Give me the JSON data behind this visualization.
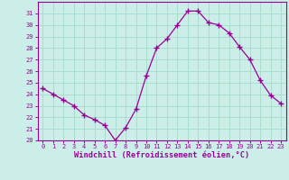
{
  "x": [
    0,
    1,
    2,
    3,
    4,
    5,
    6,
    7,
    8,
    9,
    10,
    11,
    12,
    13,
    14,
    15,
    16,
    17,
    18,
    19,
    20,
    21,
    22,
    23
  ],
  "y": [
    24.5,
    24.0,
    23.5,
    23.0,
    22.2,
    21.8,
    21.3,
    20.0,
    21.1,
    22.7,
    25.6,
    28.0,
    28.8,
    30.0,
    31.2,
    31.2,
    30.2,
    30.0,
    29.3,
    28.1,
    27.0,
    25.2,
    23.9,
    23.2
  ],
  "line_color": "#990099",
  "marker": "+",
  "marker_size": 4,
  "marker_linewidth": 1.0,
  "bg_color": "#cceee8",
  "grid_color": "#aaddcc",
  "xlabel": "Windchill (Refroidissement éolien,°C)",
  "ylim": [
    20,
    32
  ],
  "xlim": [
    -0.5,
    23.5
  ],
  "yticks": [
    20,
    21,
    22,
    23,
    24,
    25,
    26,
    27,
    28,
    29,
    30,
    31
  ],
  "xticks": [
    0,
    1,
    2,
    3,
    4,
    5,
    6,
    7,
    8,
    9,
    10,
    11,
    12,
    13,
    14,
    15,
    16,
    17,
    18,
    19,
    20,
    21,
    22,
    23
  ],
  "label_color": "#990099",
  "tick_fontsize": 5.0,
  "xlabel_fontsize": 6.2
}
